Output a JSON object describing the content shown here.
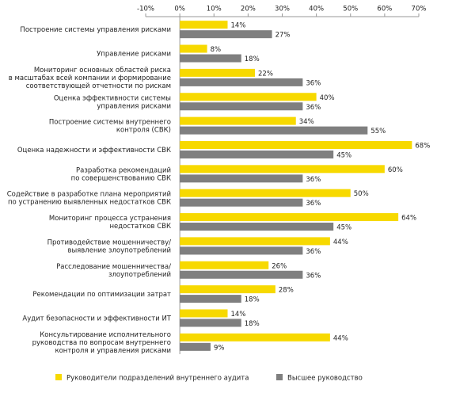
{
  "chart_data": {
    "type": "bar",
    "orientation": "horizontal",
    "categories": [
      "Построение системы управления рисками",
      "Управление рисками",
      "Мониторинг основных областей риска\nв масштабах всей компании и формирование\nсоответствующей отчетности по рискам",
      "Оценка эффективности системы\nуправления рисками",
      "Построение системы внутреннего\nконтроля (СВК)",
      "Оценка надежности и эффективности СВК",
      "Разработка рекомендаций\nпо совершенствованию СВК",
      "Содействие в разработке плана мероприятий\nпо устранению выявленных недостатков СВК",
      "Мониторинг процесса устранения\nнедостатков СВК",
      "Противодействие мошенничеству/\nвыявление злоупотреблений",
      "Расследование мошенничества/\nзлоупотреблений",
      "Рекомендации по оптимизации затрат",
      "Аудит безопасности и эффективности ИТ",
      "Консультирование исполнительного\nруководства по вопросам внутреннего\nконтроля и управления рисками"
    ],
    "series": [
      {
        "name": "Руководители подразделений внутреннего аудита",
        "color": "#f7d900",
        "values": [
          14,
          8,
          22,
          40,
          34,
          68,
          60,
          50,
          64,
          44,
          26,
          28,
          14,
          44
        ],
        "value_labels": [
          "14%",
          "8%",
          "22%",
          "40%",
          "34%",
          "68%",
          "60%",
          "50%",
          "64%",
          "44%",
          "26%",
          "28%",
          "14%",
          "44%"
        ]
      },
      {
        "name": "Высшее руководство",
        "color": "#7f7f7f",
        "values": [
          27,
          18,
          36,
          36,
          55,
          45,
          36,
          36,
          45,
          36,
          36,
          18,
          18,
          9
        ],
        "value_labels": [
          "27%",
          "18%",
          "36%",
          "36%",
          "55%",
          "45%",
          "36%",
          "36%",
          "45%",
          "36%",
          "36%",
          "18%",
          "18%",
          "9%"
        ]
      }
    ],
    "xlim": [
      -10,
      70
    ],
    "xticks": [
      {
        "value": -10,
        "label": "-10%"
      },
      {
        "value": 0,
        "label": "0%"
      },
      {
        "value": 10,
        "label": "10%"
      },
      {
        "value": 20,
        "label": "20%"
      },
      {
        "value": 30,
        "label": "30%"
      },
      {
        "value": 40,
        "label": "40%"
      },
      {
        "value": 50,
        "label": "50%"
      },
      {
        "value": 60,
        "label": "60%"
      },
      {
        "value": 70,
        "label": "70%"
      }
    ],
    "grid": false,
    "legend": "bottom"
  }
}
